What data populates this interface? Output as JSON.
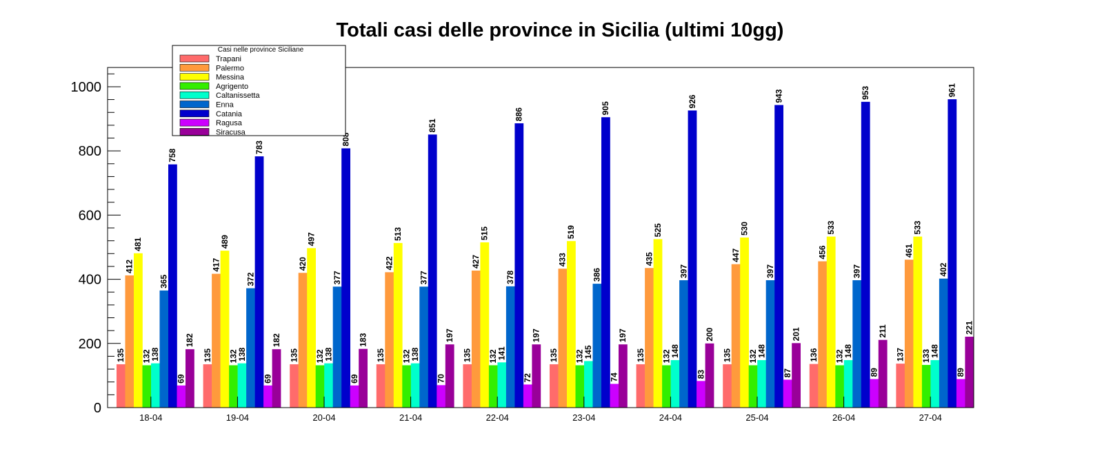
{
  "chart_data": {
    "type": "bar",
    "title": "Totali casi delle province in Sicilia (ultimi 10gg)",
    "xlabel": "",
    "ylabel": "",
    "ylim": [
      0,
      1060
    ],
    "yticks": [
      0,
      200,
      400,
      600,
      800,
      1000
    ],
    "categories": [
      "18-04",
      "19-04",
      "20-04",
      "21-04",
      "22-04",
      "23-04",
      "24-04",
      "25-04",
      "26-04",
      "27-04"
    ],
    "legend": {
      "title": "Casi nelle province Siciliane",
      "position": "top-left"
    },
    "grid": false,
    "series": [
      {
        "name": "Trapani",
        "color": "#ff6b6b",
        "values": [
          135,
          135,
          135,
          135,
          135,
          135,
          135,
          135,
          136,
          137
        ]
      },
      {
        "name": "Palermo",
        "color": "#ff9a3c",
        "values": [
          412,
          417,
          420,
          422,
          427,
          433,
          435,
          447,
          456,
          461
        ]
      },
      {
        "name": "Messina",
        "color": "#ffff00",
        "values": [
          481,
          489,
          497,
          513,
          515,
          519,
          525,
          530,
          533,
          533
        ]
      },
      {
        "name": "Agrigento",
        "color": "#33ee00",
        "values": [
          132,
          132,
          132,
          132,
          132,
          132,
          132,
          132,
          132,
          133
        ]
      },
      {
        "name": "Caltanissetta",
        "color": "#00ffcc",
        "values": [
          138,
          138,
          138,
          138,
          141,
          145,
          148,
          148,
          148,
          148
        ]
      },
      {
        "name": "Enna",
        "color": "#0066cc",
        "values": [
          365,
          372,
          377,
          377,
          378,
          386,
          397,
          397,
          397,
          402
        ]
      },
      {
        "name": "Catania",
        "color": "#0000cc",
        "values": [
          758,
          783,
          808,
          851,
          886,
          905,
          926,
          943,
          953,
          961
        ]
      },
      {
        "name": "Ragusa",
        "color": "#cc00ff",
        "values": [
          69,
          69,
          69,
          70,
          72,
          74,
          83,
          87,
          89,
          89
        ]
      },
      {
        "name": "Siracusa",
        "color": "#990099",
        "values": [
          182,
          182,
          183,
          197,
          197,
          197,
          200,
          201,
          211,
          221
        ]
      }
    ]
  }
}
